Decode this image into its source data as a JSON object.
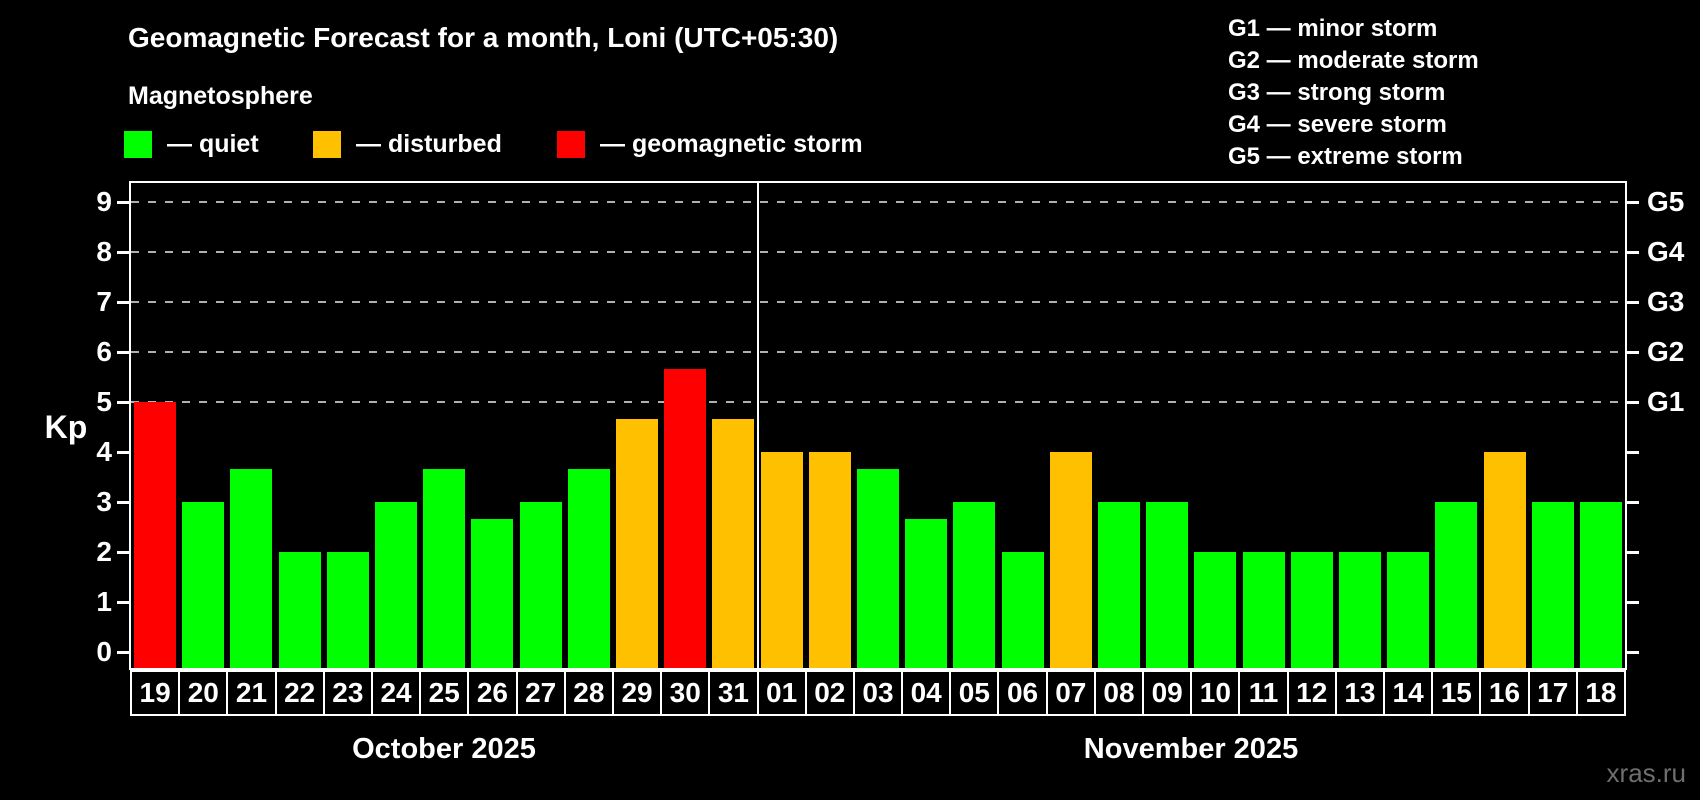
{
  "title": "Geomagnetic Forecast for a month, Loni (UTC+05:30)",
  "subtitle": "Magnetosphere",
  "legend": {
    "quiet": {
      "label": "— quiet",
      "color": "#00ff00"
    },
    "disturbed": {
      "label": "— disturbed",
      "color": "#ffc000"
    },
    "storm": {
      "label": "— geomagnetic storm",
      "color": "#ff0000"
    }
  },
  "g_legend": [
    "G1 — minor storm",
    "G2 — moderate storm",
    "G3 — strong storm",
    "G4 — severe storm",
    "G5 — extreme storm"
  ],
  "watermark": "xras.ru",
  "chart_data": {
    "type": "bar",
    "title": "Geomagnetic Forecast for a month, Loni (UTC+05:30)",
    "subtitle": "Magnetosphere",
    "ylabel": "Kp",
    "ylim": [
      0,
      9.4
    ],
    "yticks": [
      0,
      1,
      2,
      3,
      4,
      5,
      6,
      7,
      8,
      9
    ],
    "gridlines_at_kp": [
      5,
      6,
      7,
      8,
      9
    ],
    "grid": "dashed, only at G-storm levels",
    "right_axis": [
      {
        "kp": 5,
        "label": "G1"
      },
      {
        "kp": 6,
        "label": "G2"
      },
      {
        "kp": 7,
        "label": "G3"
      },
      {
        "kp": 8,
        "label": "G4"
      },
      {
        "kp": 9,
        "label": "G5"
      }
    ],
    "color_map": {
      "quiet": "#00ff00",
      "disturbed": "#ffc000",
      "storm": "#ff0000"
    },
    "months": [
      {
        "label": "October 2025",
        "days": [
          {
            "day": "19",
            "kp": 5,
            "status": "storm"
          },
          {
            "day": "20",
            "kp": 3,
            "status": "quiet"
          },
          {
            "day": "21",
            "kp": 3.67,
            "status": "quiet"
          },
          {
            "day": "22",
            "kp": 2,
            "status": "quiet"
          },
          {
            "day": "23",
            "kp": 2,
            "status": "quiet"
          },
          {
            "day": "24",
            "kp": 3,
            "status": "quiet"
          },
          {
            "day": "25",
            "kp": 3.67,
            "status": "quiet"
          },
          {
            "day": "26",
            "kp": 2.67,
            "status": "quiet"
          },
          {
            "day": "27",
            "kp": 3,
            "status": "quiet"
          },
          {
            "day": "28",
            "kp": 3.67,
            "status": "quiet"
          },
          {
            "day": "29",
            "kp": 4.67,
            "status": "disturbed"
          },
          {
            "day": "30",
            "kp": 5.67,
            "status": "storm"
          },
          {
            "day": "31",
            "kp": 4.67,
            "status": "disturbed"
          }
        ]
      },
      {
        "label": "November 2025",
        "days": [
          {
            "day": "01",
            "kp": 4,
            "status": "disturbed"
          },
          {
            "day": "02",
            "kp": 4,
            "status": "disturbed"
          },
          {
            "day": "03",
            "kp": 3.67,
            "status": "quiet"
          },
          {
            "day": "04",
            "kp": 2.67,
            "status": "quiet"
          },
          {
            "day": "05",
            "kp": 3,
            "status": "quiet"
          },
          {
            "day": "06",
            "kp": 2,
            "status": "quiet"
          },
          {
            "day": "07",
            "kp": 4,
            "status": "disturbed"
          },
          {
            "day": "08",
            "kp": 3,
            "status": "quiet"
          },
          {
            "day": "09",
            "kp": 3,
            "status": "quiet"
          },
          {
            "day": "10",
            "kp": 2,
            "status": "quiet"
          },
          {
            "day": "11",
            "kp": 2,
            "status": "quiet"
          },
          {
            "day": "12",
            "kp": 2,
            "status": "quiet"
          },
          {
            "day": "13",
            "kp": 2,
            "status": "quiet"
          },
          {
            "day": "14",
            "kp": 2,
            "status": "quiet"
          },
          {
            "day": "15",
            "kp": 3,
            "status": "quiet"
          },
          {
            "day": "16",
            "kp": 4,
            "status": "disturbed"
          },
          {
            "day": "17",
            "kp": 3,
            "status": "quiet"
          },
          {
            "day": "18",
            "kp": 3,
            "status": "quiet"
          }
        ]
      }
    ]
  }
}
